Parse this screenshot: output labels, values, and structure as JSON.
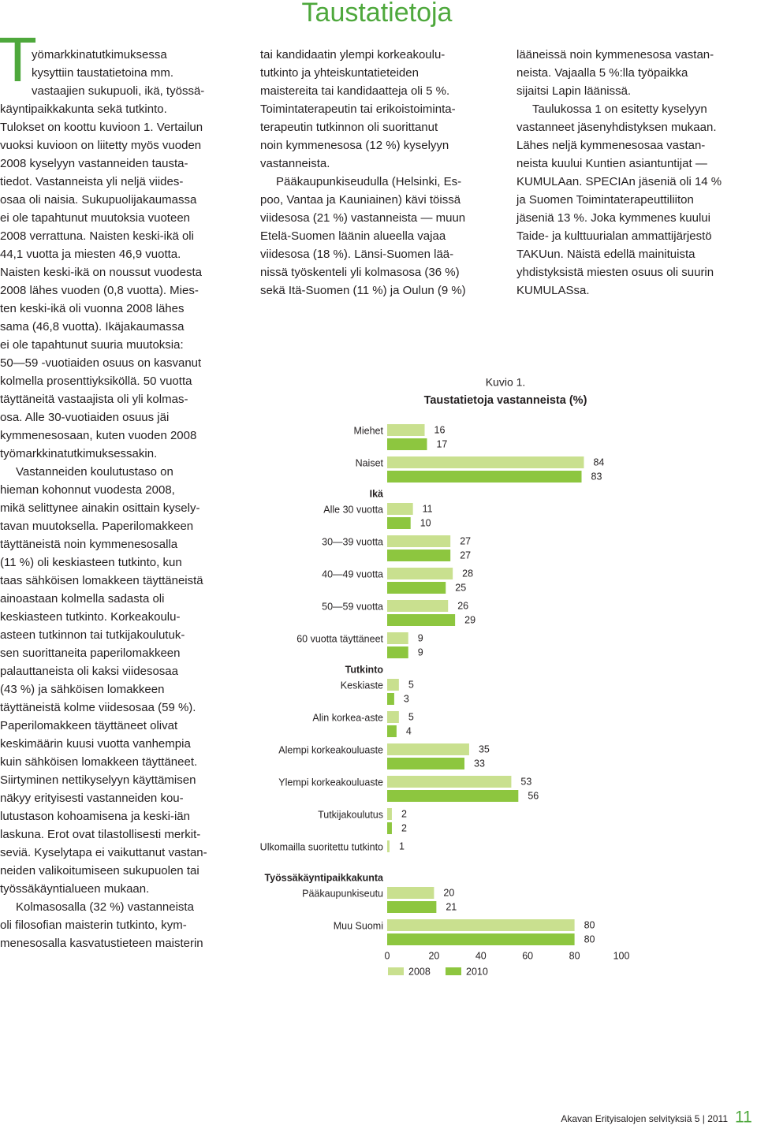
{
  "header": {
    "title": "Taustatietoja"
  },
  "body": {
    "dropcap": "T",
    "columns": [
      [
        [
          "yömarkkinatutkimuksessa",
          "kysyttiin taustatietoina mm.",
          "vastaajien sukupuoli, ikä, työssä-",
          "käyntipaikkakunta sekä tutkinto.",
          "Tulokset on koottu kuvioon 1. Vertailun",
          "vuoksi kuvioon on liitetty myös vuoden",
          "2008 kyselyyn vastanneiden tausta-",
          "tiedot. Vastanneista yli neljä viides-",
          "osaa oli naisia. Sukupuolijakaumassa",
          "ei ole tapahtunut muutoksia vuoteen",
          "2008 verrattuna. Naisten keski-ikä oli",
          "44,1 vuotta ja miesten 46,9 vuotta.",
          "Naisten keski-ikä on noussut vuodesta",
          "2008 lähes vuoden (0,8 vuotta). Mies-",
          "ten keski-ikä oli vuonna 2008 lähes",
          "sama (46,8 vuotta). Ikäjakaumassa",
          "ei ole tapahtunut suuria muutoksia:",
          "50—59 -vuotiaiden osuus on kasvanut",
          "kolmella prosenttiyksiköllä. 50 vuotta",
          "täyttäneitä vastaajista oli yli kolmas-",
          "osa. Alle 30-vuotiaiden osuus jäi",
          "kymmenesosaan, kuten vuoden 2008",
          "työmarkkinatutkimuksessakin."
        ],
        [
          "Vastanneiden koulutustaso on",
          "hieman kohonnut vuodesta 2008,",
          "mikä selittynee ainakin osittain kysely-",
          "tavan muutoksella. Paperilomakkeen",
          "täyttäneistä noin kymmenesosalla",
          "(11 %) oli keskiasteen tutkinto, kun",
          "taas sähköisen lomakkeen täyttäneistä",
          "ainoastaan kolmella sadasta oli",
          "keskiasteen tutkinto. Korkeakoulu-",
          "asteen tutkinnon tai tutkijakoulutuk-",
          "sen suorittaneita paperilomakkeen",
          "palauttaneista oli kaksi viidesosaa",
          "(43 %) ja sähköisen lomakkeen",
          "täyttäneistä kolme viidesosaa (59 %).",
          "Paperilomakkeen täyttäneet olivat",
          "keskimäärin kuusi vuotta vanhempia",
          "kuin sähköisen lomakkeen täyttäneet.",
          "Siirtyminen nettikyselyyn käyttämisen",
          "näkyy erityisesti vastanneiden kou-",
          "lutustason kohoamisena ja keski-iän",
          "laskuna. Erot ovat tilastollisesti merkit-",
          "seviä. Kyselytapa ei vaikuttanut vastan-",
          "neiden valikoitumiseen sukupuolen tai",
          "työssäkäyntialueen mukaan."
        ],
        [
          "Kolmasosalla (32 %) vastanneista",
          "oli filosofian maisterin tutkinto, kym-",
          "menesosalla kasvatustieteen maisterin"
        ]
      ],
      [
        [
          "tai kandidaatin ylempi korkeakoulu-",
          "tutkinto ja yhteiskuntatieteiden",
          "maistereita tai kandidaatteja oli 5 %.",
          "Toimintaterapeutin tai erikoistoiminta-",
          "terapeutin tutkinnon oli suorittanut",
          "noin kymmenesosa (12 %) kyselyyn",
          "vastanneista."
        ],
        [
          "Pääkaupunkiseudulla (Helsinki, Es-",
          "poo, Vantaa ja Kauniainen) kävi töissä",
          "viidesosa (21 %) vastanneista — muun",
          "Etelä-Suomen läänin alueella vajaa",
          "viidesosa (18 %). Länsi-Suomen lää-",
          "nissä työskenteli yli kolmasosa (36 %)",
          "sekä Itä-Suomen (11 %) ja Oulun (9 %)"
        ]
      ],
      [
        [
          "lääneissä noin kymmenesosa vastan-",
          "neista. Vajaalla 5 %:lla työpaikka",
          "sijaitsi Lapin läänissä."
        ],
        [
          "Taulukossa 1 on esitetty kyselyyn",
          "vastanneet jäsenyhdistyksen mukaan.",
          "Lähes neljä kymmenesosaa vastan-",
          "neista kuului Kuntien asiantuntijat —",
          "KUMULAan. SPECIAn jäseniä oli 14 %",
          "ja Suomen Toimintaterapeuttiliiton",
          "jäseniä 13 %. Joka kymmenes kuului",
          "Taide- ja kulttuurialan ammattijärjestö",
          "TAKUun. Näistä edellä mainituista",
          "yhdistyksistä miesten osuus oli suurin",
          "KUMULASsa."
        ]
      ]
    ]
  },
  "chart_data": {
    "type": "bar",
    "orientation": "horizontal",
    "caption": "Kuvio 1.",
    "title": "Taustatietoja vastanneista (%)",
    "categories": [
      "Miehet",
      "Naiset",
      "Ikä",
      "Alle 30 vuotta",
      "30—39 vuotta",
      "40—49 vuotta",
      "50—59 vuotta",
      "60 vuotta täyttäneet",
      "Tutkinto",
      "Keskiaste",
      "Alin korkea-aste",
      "Alempi korkeakouluaste",
      "Ylempi korkeakouluaste",
      "Tutkijakoulutus",
      "Ulkomailla suoritettu tutkinto",
      "Työssäkäyntipaikkakunta",
      "Pääkaupunkiseutu",
      "Muu Suomi"
    ],
    "series": [
      {
        "name": "2008",
        "color": "#c9e08f",
        "values": [
          16,
          84,
          null,
          11,
          27,
          28,
          26,
          9,
          null,
          5,
          5,
          35,
          53,
          2,
          1,
          null,
          20,
          80
        ]
      },
      {
        "name": "2010",
        "color": "#8dc63f",
        "values": [
          17,
          83,
          null,
          10,
          27,
          25,
          29,
          9,
          null,
          3,
          4,
          33,
          56,
          2,
          null,
          null,
          21,
          80
        ]
      }
    ],
    "xlim": [
      0,
      100
    ],
    "xticks": [
      0,
      20,
      40,
      60,
      80,
      100
    ],
    "grid": false
  },
  "footer": {
    "publication": "Akavan Erityisalojen selvityksiä 5 | 2011",
    "page": "11"
  }
}
